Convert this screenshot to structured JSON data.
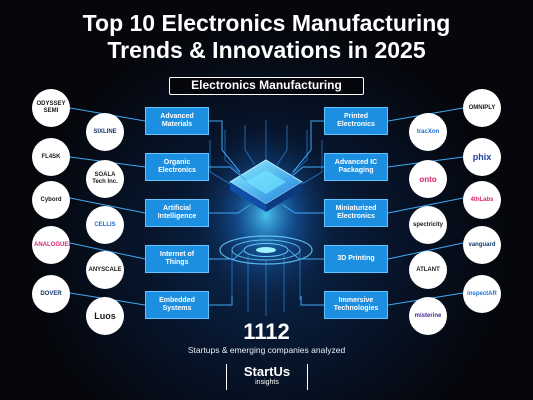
{
  "title_line1": "Top 10 Electronics Manufacturing",
  "title_line2": "Trends & Innovations in 2025",
  "center_label": "Electronics Manufacturing",
  "left_trends": [
    "Advanced Materials",
    "Organic Electronics",
    "Artificial Intelligence",
    "Internet of Things",
    "Embedded Systems"
  ],
  "right_trends": [
    "Printed Electronics",
    "Advanced IC Packaging",
    "Miniaturized Electronics",
    "3D Printing",
    "Immersive Technologies"
  ],
  "outer_left_logos": [
    "ODYSSEY SEMI",
    "FL4SK",
    "Cybord",
    "ANALOGUEBITS",
    "DOVER"
  ],
  "inner_left_logos": [
    "SIXLINE",
    "SOALA Tech Inc.",
    "CELLIS",
    "ANYSCALE",
    "Luos"
  ],
  "inner_right_logos": [
    "tracXon",
    "onto",
    "spectricity",
    "ATLANT",
    "misterine"
  ],
  "outer_right_logos": [
    "OMNIPLY",
    "phix",
    "4thLabs",
    "vanguard",
    "inspectAR"
  ],
  "stat_value": "1112",
  "stat_label": "Startups & emerging companies analyzed",
  "brand_name": "StartUs",
  "brand_sub": "insights",
  "colors": {
    "trend_box": "#1d8fe0",
    "line": "#3fa9f5",
    "background": "#05070d"
  }
}
